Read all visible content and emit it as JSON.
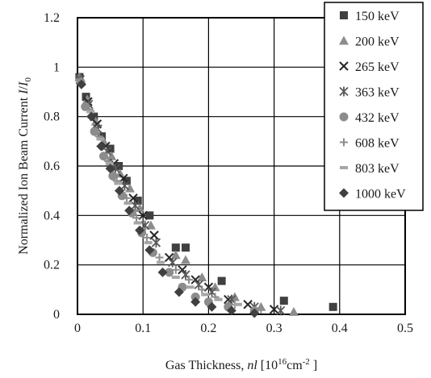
{
  "chart_data": {
    "type": "scatter",
    "xlabel": {
      "prefix": "Gas Thickness, ",
      "var": "nl",
      "unit_open": " [10",
      "unit_sup": "16",
      "unit_mid": "cm",
      "unit_sup2": "-2",
      "unit_close": "   ]"
    },
    "ylabel": {
      "prefix": "Normalized Ion Beam Current ",
      "var": "I",
      "slash": "/",
      "var2": "I",
      "sub": "0"
    },
    "xlim": [
      0,
      0.5
    ],
    "ylim": [
      0,
      1.2
    ],
    "x_ticks": [
      "0",
      "0.1",
      "0.2",
      "0.3",
      "0.4",
      "0.5"
    ],
    "y_ticks": [
      "0",
      "0.2",
      "0.4",
      "0.6",
      "0.8",
      "1",
      "1.2"
    ],
    "grid": true,
    "legend_position": "top-right",
    "series": [
      {
        "name": "150 keV",
        "marker": "square",
        "color": "#404040",
        "points": [
          [
            0.003,
            0.96
          ],
          [
            0.013,
            0.88
          ],
          [
            0.025,
            0.8
          ],
          [
            0.037,
            0.72
          ],
          [
            0.05,
            0.67
          ],
          [
            0.063,
            0.6
          ],
          [
            0.075,
            0.54
          ],
          [
            0.092,
            0.46
          ],
          [
            0.11,
            0.4
          ],
          [
            0.15,
            0.27
          ],
          [
            0.165,
            0.27
          ],
          [
            0.22,
            0.135
          ],
          [
            0.315,
            0.055
          ],
          [
            0.39,
            0.03
          ]
        ]
      },
      {
        "name": "200 keV",
        "marker": "triangle",
        "color": "#8c8c8c",
        "points": [
          [
            0.003,
            0.96
          ],
          [
            0.015,
            0.87
          ],
          [
            0.028,
            0.78
          ],
          [
            0.04,
            0.7
          ],
          [
            0.052,
            0.64
          ],
          [
            0.065,
            0.57
          ],
          [
            0.08,
            0.51
          ],
          [
            0.095,
            0.43
          ],
          [
            0.112,
            0.36
          ],
          [
            0.15,
            0.24
          ],
          [
            0.165,
            0.22
          ],
          [
            0.19,
            0.15
          ],
          [
            0.21,
            0.11
          ],
          [
            0.24,
            0.07
          ],
          [
            0.28,
            0.03
          ],
          [
            0.33,
            0.01
          ]
        ]
      },
      {
        "name": "265 keV",
        "marker": "x",
        "color": "#262626",
        "points": [
          [
            0.004,
            0.95
          ],
          [
            0.016,
            0.86
          ],
          [
            0.03,
            0.77
          ],
          [
            0.043,
            0.68
          ],
          [
            0.056,
            0.61
          ],
          [
            0.07,
            0.55
          ],
          [
            0.085,
            0.47
          ],
          [
            0.1,
            0.4
          ],
          [
            0.117,
            0.32
          ],
          [
            0.14,
            0.23
          ],
          [
            0.16,
            0.18
          ],
          [
            0.18,
            0.14
          ],
          [
            0.2,
            0.11
          ],
          [
            0.23,
            0.06
          ],
          [
            0.26,
            0.04
          ],
          [
            0.3,
            0.02
          ]
        ]
      },
      {
        "name": "363 keV",
        "marker": "star",
        "color": "#595959",
        "points": [
          [
            0.004,
            0.95
          ],
          [
            0.017,
            0.85
          ],
          [
            0.031,
            0.75
          ],
          [
            0.045,
            0.66
          ],
          [
            0.058,
            0.59
          ],
          [
            0.072,
            0.52
          ],
          [
            0.088,
            0.44
          ],
          [
            0.103,
            0.36
          ],
          [
            0.12,
            0.29
          ],
          [
            0.145,
            0.21
          ],
          [
            0.165,
            0.16
          ],
          [
            0.185,
            0.12
          ],
          [
            0.205,
            0.09
          ],
          [
            0.235,
            0.06
          ],
          [
            0.27,
            0.03
          ],
          [
            0.31,
            0.015
          ]
        ]
      },
      {
        "name": "432 keV",
        "marker": "circle",
        "color": "#8c8c8c",
        "points": [
          [
            0.005,
            0.94
          ],
          [
            0.012,
            0.84
          ],
          [
            0.026,
            0.74
          ],
          [
            0.04,
            0.64
          ],
          [
            0.054,
            0.56
          ],
          [
            0.068,
            0.48
          ],
          [
            0.083,
            0.41
          ],
          [
            0.098,
            0.33
          ],
          [
            0.115,
            0.25
          ],
          [
            0.14,
            0.17
          ],
          [
            0.16,
            0.11
          ],
          [
            0.18,
            0.07
          ],
          [
            0.2,
            0.05
          ],
          [
            0.23,
            0.03
          ],
          [
            0.27,
            0.015
          ]
        ]
      },
      {
        "name": "608 keV",
        "marker": "plus",
        "color": "#8c8c8c",
        "points": [
          [
            0.005,
            0.94
          ],
          [
            0.018,
            0.83
          ],
          [
            0.033,
            0.72
          ],
          [
            0.047,
            0.62
          ],
          [
            0.06,
            0.54
          ],
          [
            0.075,
            0.47
          ],
          [
            0.09,
            0.39
          ],
          [
            0.106,
            0.31
          ],
          [
            0.125,
            0.23
          ],
          [
            0.15,
            0.18
          ],
          [
            0.17,
            0.14
          ],
          [
            0.19,
            0.1
          ],
          [
            0.21,
            0.07
          ],
          [
            0.24,
            0.04
          ],
          [
            0.28,
            0.02
          ]
        ]
      },
      {
        "name": "803 keV",
        "marker": "dash",
        "color": "#a6a6a6",
        "points": [
          [
            0.006,
            0.93
          ],
          [
            0.02,
            0.82
          ],
          [
            0.035,
            0.71
          ],
          [
            0.049,
            0.61
          ],
          [
            0.062,
            0.53
          ],
          [
            0.077,
            0.45
          ],
          [
            0.092,
            0.37
          ],
          [
            0.108,
            0.29
          ],
          [
            0.127,
            0.21
          ],
          [
            0.15,
            0.15
          ],
          [
            0.172,
            0.11
          ],
          [
            0.195,
            0.08
          ],
          [
            0.215,
            0.06
          ],
          [
            0.245,
            0.04
          ]
        ]
      },
      {
        "name": "1000 keV",
        "marker": "diamond",
        "color": "#404040",
        "points": [
          [
            0.006,
            0.93
          ],
          [
            0.021,
            0.8
          ],
          [
            0.036,
            0.68
          ],
          [
            0.05,
            0.59
          ],
          [
            0.064,
            0.5
          ],
          [
            0.079,
            0.42
          ],
          [
            0.095,
            0.34
          ],
          [
            0.11,
            0.26
          ],
          [
            0.13,
            0.17
          ],
          [
            0.155,
            0.09
          ],
          [
            0.18,
            0.05
          ],
          [
            0.205,
            0.03
          ],
          [
            0.235,
            0.015
          ],
          [
            0.27,
            0.005
          ]
        ]
      }
    ]
  }
}
